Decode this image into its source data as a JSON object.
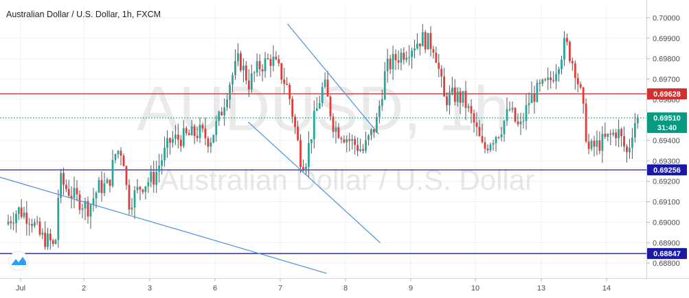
{
  "chart_data": {
    "type": "candlestick",
    "title": "Australian Dollar / U.S. Dollar, 1h, FXCM",
    "watermark": "AUDUSD, 1h",
    "watermark_sub": "Australian Dollar / U.S. Dollar",
    "ylim": [
      0.6873,
      0.7006
    ],
    "y_ticks": [
      "0.70000",
      "0.69900",
      "0.69800",
      "0.69700",
      "0.69600",
      "0.69500",
      "0.69400",
      "0.69300",
      "0.69200",
      "0.69100",
      "0.69000",
      "0.68900",
      "0.68800"
    ],
    "x_ticks": [
      "Jul",
      "2",
      "3",
      "6",
      "7",
      "8",
      "9",
      "10",
      "13",
      "14"
    ],
    "horizontal_levels": [
      {
        "value": 0.69628,
        "label": "0.69628",
        "color": "#d32f2f"
      },
      {
        "value": 0.69256,
        "label": "0.69256",
        "color": "#1a1aa6"
      },
      {
        "value": 0.68847,
        "label": "0.68847",
        "color": "#1a1aa6"
      }
    ],
    "current_price": {
      "value": 0.6951,
      "label": "0.69510",
      "countdown": "31:40",
      "color": "#089981"
    },
    "trendlines": [
      {
        "x1": 0.0,
        "y1": 0.6922,
        "x2": 4.9,
        "y2": 0.6875
      },
      {
        "x1": 4.3,
        "y1": 0.6997,
        "x2": 5.7,
        "y2": 0.6943
      },
      {
        "x1": 3.7,
        "y1": 0.6949,
        "x2": 5.72,
        "y2": 0.689
      }
    ],
    "colors": {
      "up": "#26a69a",
      "down": "#e53935",
      "wick": "#555555",
      "trend": "#4a90d9",
      "grid": "#eef0f3"
    },
    "seed_path": [
      [
        0.0,
        0.6899
      ],
      [
        0.2,
        0.6906
      ],
      [
        0.4,
        0.6902
      ],
      [
        0.55,
        0.6893
      ],
      [
        0.72,
        0.689
      ],
      [
        0.78,
        0.6886
      ],
      [
        0.85,
        0.6921
      ],
      [
        0.95,
        0.6917
      ],
      [
        1.1,
        0.6912
      ],
      [
        1.3,
        0.6907
      ],
      [
        1.45,
        0.6917
      ],
      [
        1.6,
        0.6918
      ],
      [
        1.72,
        0.6935
      ],
      [
        1.82,
        0.6935
      ],
      [
        1.9,
        0.6909
      ],
      [
        2.1,
        0.6918
      ],
      [
        2.3,
        0.6922
      ],
      [
        2.4,
        0.693
      ],
      [
        2.55,
        0.694
      ],
      [
        2.8,
        0.6942
      ],
      [
        3.0,
        0.6944
      ],
      [
        3.15,
        0.694
      ],
      [
        3.3,
        0.6951
      ],
      [
        3.45,
        0.6968
      ],
      [
        3.6,
        0.698
      ],
      [
        3.75,
        0.6968
      ],
      [
        3.9,
        0.6976
      ],
      [
        4.1,
        0.698
      ],
      [
        4.25,
        0.6972
      ],
      [
        4.35,
        0.6965
      ],
      [
        4.55,
        0.693
      ],
      [
        4.62,
        0.693
      ],
      [
        4.75,
        0.695
      ],
      [
        4.9,
        0.6968
      ],
      [
        5.05,
        0.6947
      ],
      [
        5.3,
        0.694
      ],
      [
        5.5,
        0.6935
      ],
      [
        5.7,
        0.6948
      ],
      [
        5.85,
        0.6975
      ],
      [
        6.0,
        0.698
      ],
      [
        6.2,
        0.6985
      ],
      [
        6.4,
        0.699
      ],
      [
        6.6,
        0.6986
      ],
      [
        6.75,
        0.696
      ],
      [
        6.9,
        0.6962
      ],
      [
        7.05,
        0.696
      ],
      [
        7.2,
        0.6949
      ],
      [
        7.35,
        0.6935
      ],
      [
        7.45,
        0.694
      ],
      [
        7.6,
        0.6945
      ],
      [
        7.75,
        0.6955
      ],
      [
        7.9,
        0.6945
      ],
      [
        8.05,
        0.696
      ],
      [
        8.2,
        0.6965
      ],
      [
        8.35,
        0.6968
      ],
      [
        8.45,
        0.6975
      ],
      [
        8.6,
        0.6988
      ],
      [
        8.75,
        0.6975
      ],
      [
        8.85,
        0.696
      ],
      [
        8.95,
        0.6935
      ],
      [
        9.1,
        0.6938
      ],
      [
        9.25,
        0.6941
      ],
      [
        9.4,
        0.6945
      ],
      [
        9.55,
        0.6933
      ],
      [
        9.65,
        0.6949
      ],
      [
        9.75,
        0.6951
      ]
    ]
  }
}
